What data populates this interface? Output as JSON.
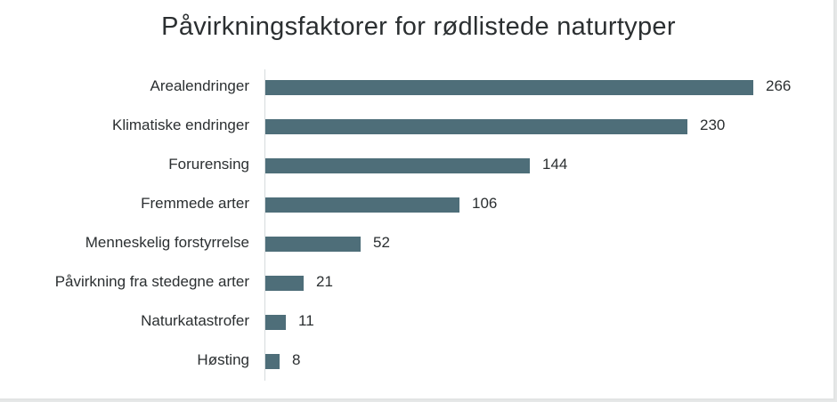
{
  "chart_data": {
    "type": "bar",
    "orientation": "horizontal",
    "title": "Påvirkningsfaktorer for rødlistede naturtyper",
    "xlabel": "",
    "ylabel": "",
    "categories": [
      "Arealendringer",
      "Klimatiske endringer",
      "Forurensing",
      "Fremmede arter",
      "Menneskelig forstyrrelse",
      "Påvirkning fra stedegne arter",
      "Naturkatastrofer",
      "Høsting"
    ],
    "values": [
      266,
      230,
      144,
      106,
      52,
      21,
      11,
      8
    ],
    "data_labels": [
      "266",
      "230",
      "144",
      "106",
      "52",
      "21",
      "11",
      "8"
    ],
    "bar_color": "#4e6e79",
    "grid": false,
    "legend": null,
    "xlim": [
      0,
      266
    ]
  }
}
